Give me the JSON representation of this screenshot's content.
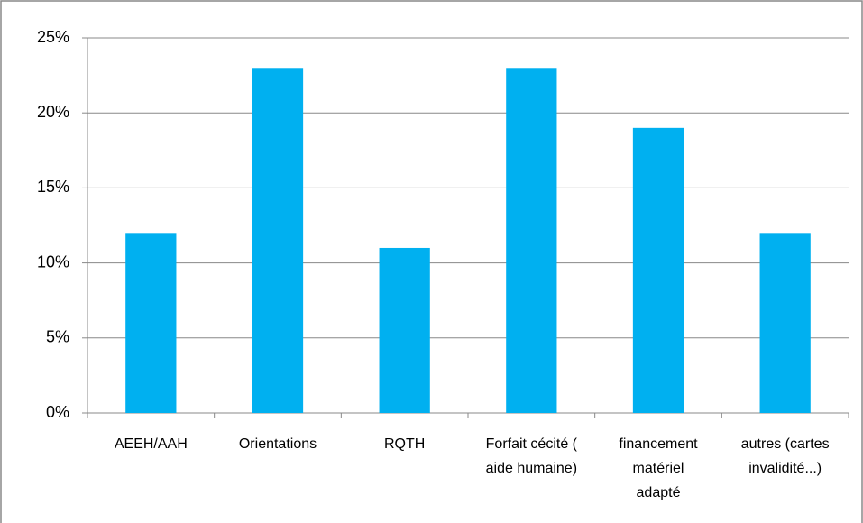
{
  "chart_data": {
    "type": "bar",
    "categories": [
      "AEEH/AAH",
      "Orientations",
      "RQTH",
      "Forfait cécité ( aide humaine)",
      "financement matériel adapté",
      "autres (cartes invalidité...)"
    ],
    "values": [
      12,
      23,
      11,
      23,
      19,
      12
    ],
    "color": "#00b0f0",
    "ylim": [
      0,
      25
    ],
    "yticks": [
      {
        "value": 0,
        "label": "0%"
      },
      {
        "value": 5,
        "label": "5%"
      },
      {
        "value": 10,
        "label": "10%"
      },
      {
        "value": 15,
        "label": "15%"
      },
      {
        "value": 20,
        "label": "20%"
      },
      {
        "value": 25,
        "label": "25%"
      }
    ],
    "grid": true
  }
}
